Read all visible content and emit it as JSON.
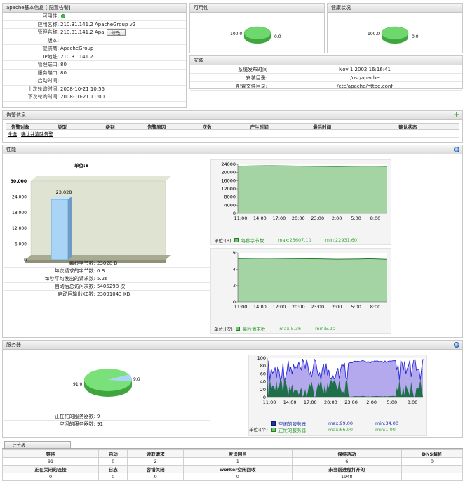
{
  "basic": {
    "title": "apache基本信息 [ 配置告警]",
    "rows": [
      {
        "k": "可用性:",
        "v": ""
      },
      {
        "k": "应用名称:",
        "v": "210.31.141.2 ApacheGroup v2"
      },
      {
        "k": "管理名称:",
        "v": "210.31.141.2 Apa"
      },
      {
        "k": "版本:",
        "v": ""
      },
      {
        "k": "提供商:",
        "v": "ApacheGroup"
      },
      {
        "k": "IP地址:",
        "v": "210.31.141.2"
      },
      {
        "k": "管理端口:",
        "v": "80"
      },
      {
        "k": "服务端口:",
        "v": "80"
      },
      {
        "k": "启动时间:",
        "v": ""
      },
      {
        "k": "上次轮询时间:",
        "v": "2008-10-21 10:55"
      },
      {
        "k": "下次轮询时间:",
        "v": "2008-10-21 11:00"
      }
    ],
    "modify_label": "修改"
  },
  "availability": {
    "title": "可用性",
    "value_left": "100.0",
    "value_right": "0.0"
  },
  "health": {
    "title": "健康状况",
    "value_left": "100.0",
    "value_right": "0.0"
  },
  "install": {
    "title": "安装",
    "rows": [
      {
        "k": "系统发布时间",
        "v": "Nov 1 2002 16:16:41"
      },
      {
        "k": "安装目录:",
        "v": "/usr/apache"
      },
      {
        "k": "配置文件目录:",
        "v": "/etc/apache/httpd.conf"
      }
    ]
  },
  "alarm": {
    "title": "告警信息",
    "headers": [
      "告警对象",
      "类型",
      "级别",
      "告警原因",
      "次数",
      "产生时间",
      "最后时间",
      "确认状态"
    ],
    "select_all": "全选",
    "confirm_clear": "确认并清除告警"
  },
  "performance": {
    "title": "性能",
    "bar_chart": {
      "unit": "单位:B",
      "ticks": [
        "30,000",
        "24,000",
        "18,000",
        "12,000",
        "6,000",
        "0"
      ],
      "value": 23028,
      "value_label": "23,028",
      "ymax": 30000
    },
    "stats": [
      {
        "k": "每秒字节数:",
        "v": "23028 B"
      },
      {
        "k": "每次请求的字节数:",
        "v": "0 B"
      },
      {
        "k": "每秒平均发出的请求数:",
        "v": "5.26"
      },
      {
        "k": "启动后总访问次数:",
        "v": "5405298 次"
      },
      {
        "k": "启动后输出KB数:",
        "v": "23091043 KB"
      }
    ],
    "line1": {
      "yticks": [
        "24000",
        "20000",
        "16000",
        "12000",
        "8000",
        "4000",
        "0"
      ],
      "xticks": [
        "11:00",
        "14:00",
        "17:00",
        "20:00",
        "23:00",
        "2:00",
        "5:00",
        "8:00"
      ],
      "unit": "单位:(B)",
      "legend": "每秒字节数",
      "max": "max:23607.10",
      "min": "min:22931.60"
    },
    "line2": {
      "yticks": [
        "6",
        "4",
        "2",
        "0"
      ],
      "xticks": [
        "11:00",
        "14:00",
        "17:00",
        "20:00",
        "23:00",
        "2:00",
        "5:00",
        "8:00"
      ],
      "unit": "单位:(次)",
      "legend": "每秒请求数",
      "max": "max:5.36",
      "min": "min:5.20"
    }
  },
  "server": {
    "title": "服务器",
    "pie": {
      "busy_label": "9.0",
      "idle_label": "91.0"
    },
    "stats": [
      {
        "k": "正在忙的服务器数:",
        "v": "9"
      },
      {
        "k": "空闲的服务器数:",
        "v": "91"
      }
    ],
    "area": {
      "yticks": [
        "100",
        "80",
        "60",
        "40",
        "20",
        "0"
      ],
      "xticks": [
        "11:00",
        "14:00",
        "17:00",
        "20:00",
        "23:00",
        "2:00",
        "5:00",
        "8:00"
      ],
      "unit": "单位:(个)",
      "legend1": "空闲的服务器",
      "legend1_max": "max:99.00",
      "legend1_min": "min:34.00",
      "legend2": "正忙的服务器",
      "legend2_max": "max:66.00",
      "legend2_min": "min:1.00"
    }
  },
  "scoreboard": {
    "tab": "计分板",
    "headers1": [
      "等待",
      "启动",
      "读取请求",
      "发送回目",
      "保持活动",
      "DNS解析"
    ],
    "values1": [
      "91",
      "0",
      "2",
      "1",
      "6",
      "0"
    ],
    "headers2": [
      "正在关闭的连接",
      "日志",
      "容错关闭",
      "worker空闲回收",
      "未当前进程打开的",
      ""
    ],
    "values2": [
      "0",
      "0",
      "0",
      "0",
      "1948",
      ""
    ]
  },
  "colors": {
    "green": "#5fd35f",
    "blue_pie": "#a9d4f5",
    "bar": "#a9d4f5",
    "navy": "#2a2ad6"
  }
}
